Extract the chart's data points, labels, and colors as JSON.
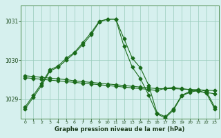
{
  "title": "Graphe pression niveau de la mer (hPa)",
  "background_color": "#d6f0ee",
  "grid_color": "#99ccbb",
  "line_color": "#1a6b1a",
  "hours": [
    0,
    1,
    2,
    3,
    4,
    5,
    6,
    7,
    8,
    9,
    10,
    11,
    12,
    13,
    14,
    15,
    16,
    17,
    18,
    19,
    20,
    21,
    22,
    23
  ],
  "s1": [
    1028.8,
    1029.1,
    1029.4,
    1029.75,
    1029.85,
    1030.05,
    1030.2,
    1030.45,
    1030.7,
    1031.0,
    1031.05,
    1031.05,
    1030.55,
    1030.05,
    1029.8,
    1029.35,
    1028.65,
    1028.55,
    1028.75,
    1029.1,
    1029.2,
    1029.25,
    1029.2,
    1028.8
  ],
  "s2": [
    1029.6,
    1029.58,
    1029.56,
    1029.54,
    1029.52,
    1029.5,
    1029.47,
    1029.45,
    1029.43,
    1029.41,
    1029.39,
    1029.37,
    1029.35,
    1029.33,
    1029.31,
    1029.29,
    1029.27,
    1029.27,
    1029.27,
    1029.26,
    1029.25,
    1029.24,
    1029.23,
    1029.22
  ],
  "s3": [
    1029.55,
    1029.53,
    1029.51,
    1029.49,
    1029.47,
    1029.45,
    1029.43,
    1029.41,
    1029.39,
    1029.37,
    1029.35,
    1029.33,
    1029.31,
    1029.29,
    1029.27,
    1029.25,
    1029.22,
    1029.28,
    1029.3,
    1029.27,
    1029.24,
    1029.2,
    1029.17,
    1029.14
  ],
  "s4": [
    1028.75,
    1029.05,
    1029.35,
    1029.72,
    1029.82,
    1030.0,
    1030.18,
    1030.4,
    1030.65,
    1030.98,
    1031.05,
    1031.05,
    1030.35,
    1029.82,
    1029.52,
    1029.1,
    1028.62,
    1028.52,
    1028.72,
    1029.08,
    1029.18,
    1029.22,
    1029.15,
    1028.75
  ],
  "ylim": [
    1028.5,
    1031.4
  ],
  "yticks": [
    1029,
    1030,
    1031
  ],
  "xlim": [
    -0.5,
    23.5
  ],
  "xticks": [
    0,
    1,
    2,
    3,
    4,
    5,
    6,
    7,
    8,
    9,
    10,
    11,
    12,
    13,
    14,
    15,
    16,
    17,
    18,
    19,
    20,
    21,
    22,
    23
  ]
}
